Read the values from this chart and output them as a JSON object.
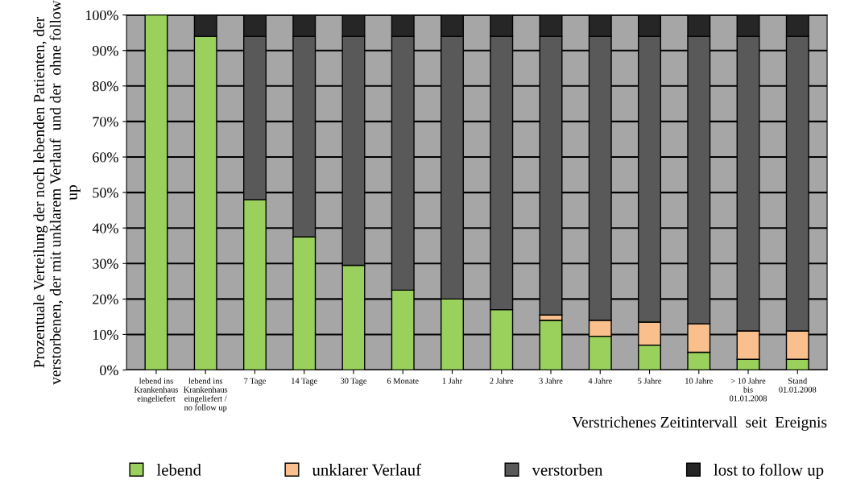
{
  "chart_data": {
    "type": "bar",
    "stacked": true,
    "ylabel": "Prozentuale Verteilung der noch lebenden Patienten, der verstorbenen, der mit unklarem Verlauf  und der  ohne follow up",
    "xlabel": "Verstrichenes Zeitintervall  seit  Ereignis",
    "categories": [
      "lebend ins\nKrankenhaus\neingeliefert",
      "lebend ins\nKrankenhaus\neingeliefert /\nno follow up",
      "7 Tage",
      "14 Tage",
      "30 Tage",
      "6 Monate",
      "1 Jahr",
      "2 Jahre",
      "3 Jahre",
      "4 Jahre",
      "5 Jahre",
      "10 Jahre",
      "> 10 Jahre\nbis\n01.01.2008",
      "Stand\n01.01.2008"
    ],
    "series": [
      {
        "name": "lebend",
        "color": "#99d15c",
        "values": [
          100,
          94,
          48,
          37.5,
          29.5,
          22.5,
          20,
          17,
          14,
          9.5,
          7,
          5,
          3,
          3
        ]
      },
      {
        "name": "unklarer Verlauf",
        "color": "#f9c08e",
        "values": [
          0,
          0,
          0,
          0,
          0,
          0,
          0,
          0,
          1.5,
          4.5,
          6.5,
          8,
          8,
          8
        ]
      },
      {
        "name": "verstorben",
        "color": "#595959",
        "values": [
          0,
          0,
          46,
          56.5,
          64.5,
          71.5,
          74,
          77,
          78.5,
          80,
          80.5,
          81,
          83,
          83
        ]
      },
      {
        "name": "lost to follow up",
        "color": "#262626",
        "values": [
          0,
          6,
          6,
          6,
          6,
          6,
          6,
          6,
          6,
          6,
          6,
          6,
          6,
          6
        ]
      }
    ],
    "ylim": [
      0,
      100
    ],
    "yticks": [
      {
        "value": 0,
        "label": "0%"
      },
      {
        "value": 10,
        "label": "10%"
      },
      {
        "value": 20,
        "label": "20%"
      },
      {
        "value": 30,
        "label": "30%"
      },
      {
        "value": 40,
        "label": "40%"
      },
      {
        "value": 50,
        "label": "50%"
      },
      {
        "value": 60,
        "label": "60%"
      },
      {
        "value": 70,
        "label": "70%"
      },
      {
        "value": 80,
        "label": "80%"
      },
      {
        "value": 90,
        "label": "90%"
      },
      {
        "value": 100,
        "label": "100%"
      }
    ],
    "grid": "y",
    "legend": "bottom"
  }
}
